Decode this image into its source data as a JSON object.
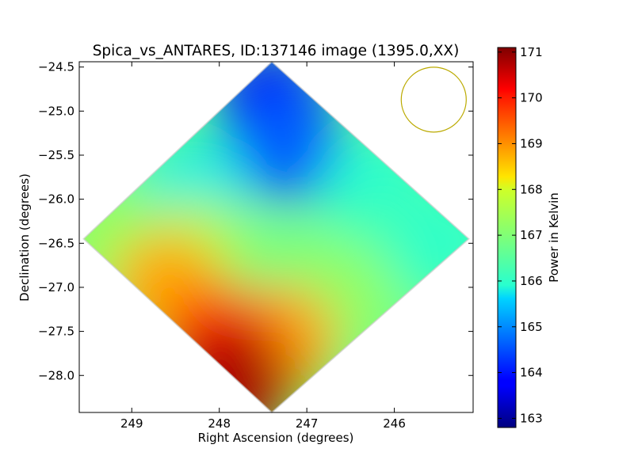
{
  "chart_data": {
    "type": "heatmap",
    "title": "Spica_vs_ANTARES, ID:137146 image (1395.0,XX)",
    "xlabel": "Right Ascension (degrees)",
    "ylabel": "Declination (degrees)",
    "xlim": [
      249.6,
      245.1
    ],
    "ylim": [
      -28.42,
      -24.44
    ],
    "x_ticks": [
      249,
      248,
      247,
      246
    ],
    "y_ticks": [
      -24.5,
      -25.0,
      -25.5,
      -26.0,
      -26.5,
      -27.0,
      -27.5,
      -28.0
    ],
    "x_tick_labels": [
      "249",
      "248",
      "247",
      "246"
    ],
    "y_tick_labels": [
      "−24.5",
      "−25.0",
      "−25.5",
      "−26.0",
      "−26.5",
      "−27.0",
      "−27.5",
      "−28.0"
    ],
    "colorbar": {
      "label": "Power in Kelvin",
      "range": [
        162.8,
        171.1
      ],
      "ticks": [
        163,
        164,
        165,
        166,
        167,
        168,
        169,
        170,
        171
      ],
      "tick_labels": [
        "163",
        "164",
        "165",
        "166",
        "167",
        "168",
        "169",
        "170",
        "171"
      ],
      "colormap": "jet"
    },
    "map": {
      "shape": "diamond",
      "vertices": [
        {
          "ra": 247.4,
          "dec": -24.44
        },
        {
          "ra": 245.15,
          "dec": -26.45
        },
        {
          "ra": 247.4,
          "dec": -28.42
        },
        {
          "ra": 249.55,
          "dec": -26.45
        }
      ],
      "field_values": [
        {
          "ra": 247.4,
          "dec": -24.9,
          "value": 163.8
        },
        {
          "ra": 247.2,
          "dec": -25.4,
          "value": 164.6
        },
        {
          "ra": 248.3,
          "dec": -25.9,
          "value": 165.8
        },
        {
          "ra": 246.2,
          "dec": -25.9,
          "value": 165.9
        },
        {
          "ra": 246.0,
          "dec": -26.5,
          "value": 166.2
        },
        {
          "ra": 245.4,
          "dec": -26.5,
          "value": 166.0
        },
        {
          "ra": 249.2,
          "dec": -26.5,
          "value": 167.3
        },
        {
          "ra": 248.3,
          "dec": -26.6,
          "value": 167.6
        },
        {
          "ra": 247.2,
          "dec": -26.9,
          "value": 166.9
        },
        {
          "ra": 246.6,
          "dec": -27.1,
          "value": 167.2
        },
        {
          "ra": 248.6,
          "dec": -27.0,
          "value": 168.8
        },
        {
          "ra": 247.3,
          "dec": -27.6,
          "value": 168.9
        },
        {
          "ra": 248.0,
          "dec": -27.6,
          "value": 169.9
        },
        {
          "ra": 247.8,
          "dec": -28.1,
          "value": 170.8
        }
      ]
    },
    "beam_marker": {
      "ra": 245.55,
      "dec": -24.87,
      "color": "#bbaa00"
    }
  }
}
